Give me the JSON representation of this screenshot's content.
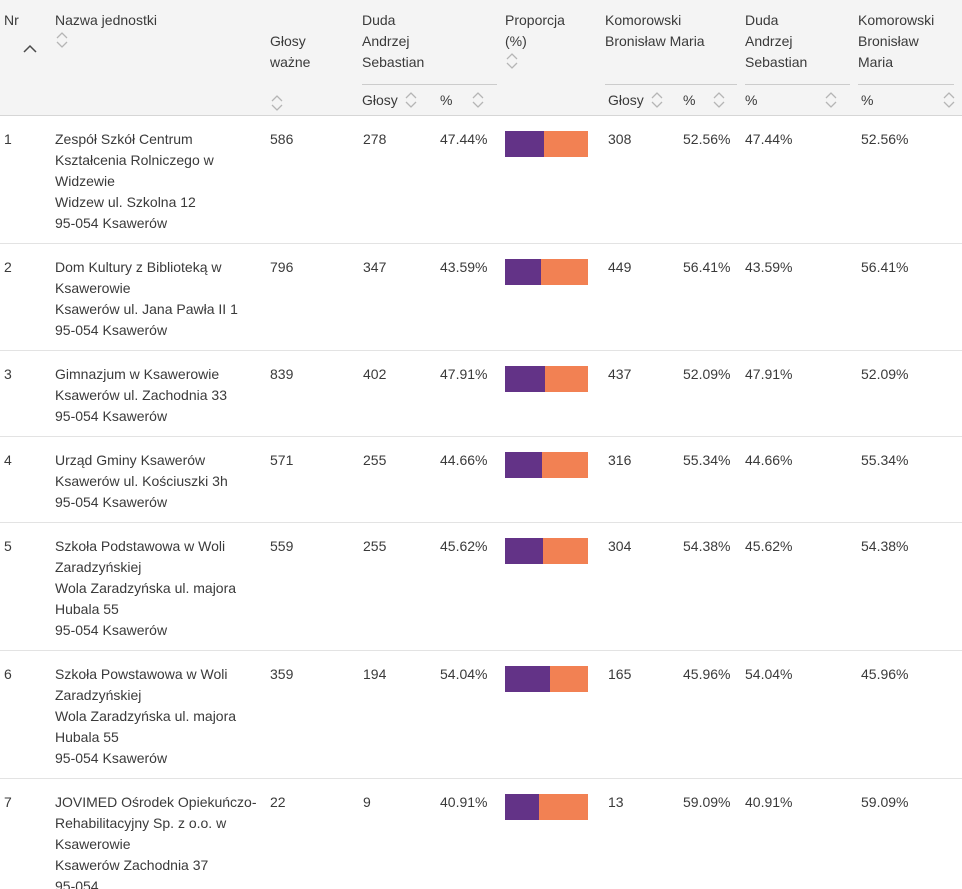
{
  "colors": {
    "duda": "#633387",
    "komorowski": "#F28153",
    "header_bg": "#f4f4f4"
  },
  "sort": {
    "active_column": "Nr",
    "direction": "asc"
  },
  "header": {
    "nr": "Nr",
    "name": "Nazwa jednostki",
    "valid": [
      "Głosy",
      "ważne"
    ],
    "duda": [
      "Duda",
      "Andrzej",
      "Sebastian"
    ],
    "prop": [
      "Proporcja",
      "(%)"
    ],
    "komorowski": [
      "Komorowski",
      "Bronisław Maria"
    ],
    "duda2": [
      "Duda",
      "Andrzej",
      "Sebastian"
    ],
    "komorowski2": [
      "Komorowski",
      "Bronisław",
      "Maria"
    ],
    "sub_glosy": "Głosy",
    "sub_pct": "%"
  },
  "rows": [
    {
      "nr": "1",
      "name": "Zespół Szkół Centrum Kształcenia Rolniczego w Widzewie",
      "address1": "Widzew ul. Szkolna 12",
      "address2": "95-054 Ksawerów",
      "valid": "586",
      "duda_votes": "278",
      "duda_pct": "47.44%",
      "kom_votes": "308",
      "kom_pct": "52.56%"
    },
    {
      "nr": "2",
      "name": "Dom Kultury z Biblioteką w Ksawerowie",
      "address1": "Ksawerów ul. Jana Pawła II 1",
      "address2": "95-054 Ksawerów",
      "valid": "796",
      "duda_votes": "347",
      "duda_pct": "43.59%",
      "kom_votes": "449",
      "kom_pct": "56.41%"
    },
    {
      "nr": "3",
      "name": "Gimnazjum w Ksawerowie",
      "address1": "Ksawerów ul. Zachodnia 33",
      "address2": "95-054 Ksawerów",
      "valid": "839",
      "duda_votes": "402",
      "duda_pct": "47.91%",
      "kom_votes": "437",
      "kom_pct": "52.09%"
    },
    {
      "nr": "4",
      "name": "Urząd Gminy Ksawerów",
      "address1": "Ksawerów ul. Kościuszki 3h",
      "address2": "95-054 Ksawerów",
      "valid": "571",
      "duda_votes": "255",
      "duda_pct": "44.66%",
      "kom_votes": "316",
      "kom_pct": "55.34%"
    },
    {
      "nr": "5",
      "name": "Szkoła Podstawowa w Woli Zaradzyńskiej",
      "address1": "Wola Zaradzyńska ul. majora Hubala 55",
      "address2": "95-054 Ksawerów",
      "valid": "559",
      "duda_votes": "255",
      "duda_pct": "45.62%",
      "kom_votes": "304",
      "kom_pct": "54.38%"
    },
    {
      "nr": "6",
      "name": "Szkoła Powstawowa w Woli Zaradzyńskiej",
      "address1": "Wola Zaradzyńska ul. majora Hubala 55",
      "address2": "95-054 Ksawerów",
      "valid": "359",
      "duda_votes": "194",
      "duda_pct": "54.04%",
      "kom_votes": "165",
      "kom_pct": "45.96%"
    },
    {
      "nr": "7",
      "name": "JOVIMED Ośrodek Opiekuńczo-Rehabilitacyjny Sp. z o.o. w Ksawerowie",
      "address1": "Ksawerów Zachodnia 37",
      "address2": "95-054",
      "valid": "22",
      "duda_votes": "9",
      "duda_pct": "40.91%",
      "kom_votes": "13",
      "kom_pct": "59.09%"
    }
  ]
}
